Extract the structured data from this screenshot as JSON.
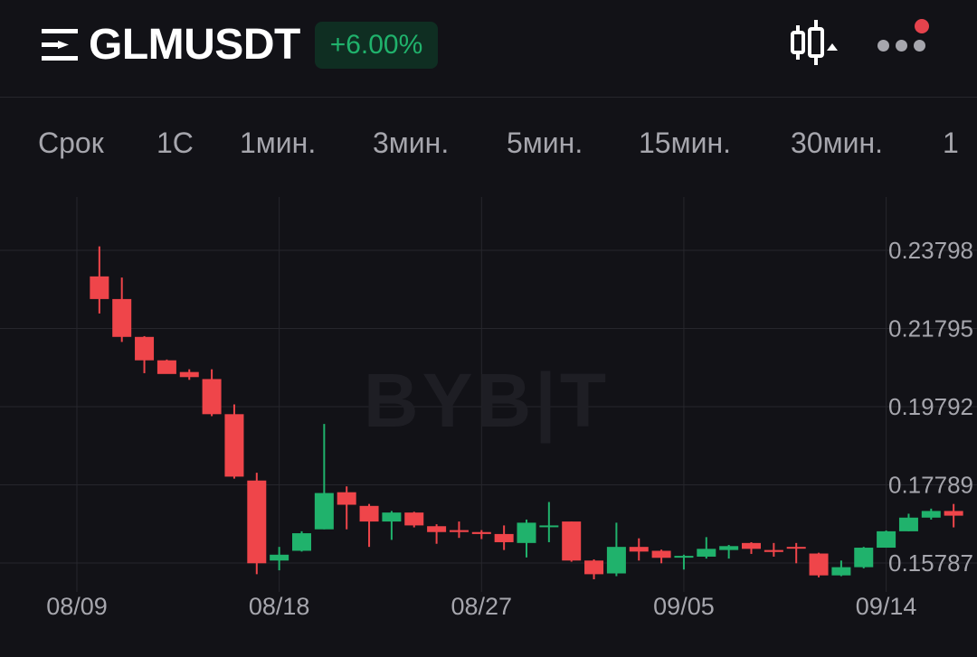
{
  "header": {
    "symbol": "GLMUSDT",
    "change": "+6.00%",
    "icons": {
      "menu": "menu-lines-icon",
      "chart_type": "candlestick-chart-icon",
      "more": "more-dots-icon",
      "notification": "notification-dot"
    }
  },
  "tabs": [
    {
      "label": "Срок",
      "active": false
    },
    {
      "label": "1С",
      "active": false
    },
    {
      "label": "1мин.",
      "active": false
    },
    {
      "label": "3мин.",
      "active": false
    },
    {
      "label": "5мин.",
      "active": false
    },
    {
      "label": "15мин.",
      "active": false
    },
    {
      "label": "30мин.",
      "active": false
    },
    {
      "label": "1",
      "active": false
    }
  ],
  "colors": {
    "background": "#121217",
    "up": "#20b26c",
    "down": "#ef454a",
    "badge_bg": "#0f2e22",
    "text_muted": "#a6a6ad",
    "grid": "#26262c"
  },
  "chart_data": {
    "type": "candlestick",
    "watermark": "BYB|T",
    "price_ticks": [
      "0.23798",
      "0.21795",
      "0.19792",
      "0.17789",
      "0.15787"
    ],
    "date_ticks": [
      "08/09",
      "08/18",
      "08/27",
      "09/05",
      "09/14"
    ],
    "candles": [
      {
        "date": "08/10",
        "o": 0.2313,
        "h": 0.239,
        "l": 0.2218,
        "c": 0.2255
      },
      {
        "date": "08/11",
        "o": 0.2255,
        "h": 0.231,
        "l": 0.2145,
        "c": 0.2158
      },
      {
        "date": "08/12",
        "o": 0.2158,
        "h": 0.216,
        "l": 0.2065,
        "c": 0.2098
      },
      {
        "date": "08/13",
        "o": 0.2098,
        "h": 0.21,
        "l": 0.2065,
        "c": 0.2063
      },
      {
        "date": "08/14",
        "o": 0.2068,
        "h": 0.2075,
        "l": 0.2048,
        "c": 0.2055
      },
      {
        "date": "08/15",
        "o": 0.205,
        "h": 0.2075,
        "l": 0.1955,
        "c": 0.196
      },
      {
        "date": "08/16",
        "o": 0.196,
        "h": 0.1985,
        "l": 0.1795,
        "c": 0.18
      },
      {
        "date": "08/17",
        "o": 0.179,
        "h": 0.181,
        "l": 0.155,
        "c": 0.1578
      },
      {
        "date": "08/18",
        "o": 0.1585,
        "h": 0.162,
        "l": 0.156,
        "c": 0.16
      },
      {
        "date": "08/19",
        "o": 0.161,
        "h": 0.166,
        "l": 0.1608,
        "c": 0.1655
      },
      {
        "date": "08/20",
        "o": 0.1665,
        "h": 0.1935,
        "l": 0.1665,
        "c": 0.1758
      },
      {
        "date": "08/21",
        "o": 0.176,
        "h": 0.1775,
        "l": 0.1665,
        "c": 0.1728
      },
      {
        "date": "08/22",
        "o": 0.1725,
        "h": 0.173,
        "l": 0.162,
        "c": 0.1685
      },
      {
        "date": "08/23",
        "o": 0.1685,
        "h": 0.1712,
        "l": 0.1638,
        "c": 0.1708
      },
      {
        "date": "08/24",
        "o": 0.1708,
        "h": 0.171,
        "l": 0.167,
        "c": 0.1675
      },
      {
        "date": "08/25",
        "o": 0.1673,
        "h": 0.1678,
        "l": 0.1628,
        "c": 0.1658
      },
      {
        "date": "08/26",
        "o": 0.1663,
        "h": 0.1685,
        "l": 0.1643,
        "c": 0.1658
      },
      {
        "date": "08/27",
        "o": 0.1658,
        "h": 0.1663,
        "l": 0.164,
        "c": 0.1653
      },
      {
        "date": "08/28",
        "o": 0.1653,
        "h": 0.1675,
        "l": 0.1612,
        "c": 0.1632
      },
      {
        "date": "08/29",
        "o": 0.163,
        "h": 0.169,
        "l": 0.1593,
        "c": 0.1682
      },
      {
        "date": "08/30",
        "o": 0.1672,
        "h": 0.1735,
        "l": 0.1632,
        "c": 0.1675
      },
      {
        "date": "08/31",
        "o": 0.1685,
        "h": 0.1685,
        "l": 0.1582,
        "c": 0.1585
      },
      {
        "date": "09/01",
        "o": 0.1585,
        "h": 0.1588,
        "l": 0.1537,
        "c": 0.155
      },
      {
        "date": "09/02",
        "o": 0.1552,
        "h": 0.1682,
        "l": 0.1545,
        "c": 0.162
      },
      {
        "date": "09/03",
        "o": 0.162,
        "h": 0.1642,
        "l": 0.1585,
        "c": 0.1608
      },
      {
        "date": "09/04",
        "o": 0.161,
        "h": 0.1613,
        "l": 0.1578,
        "c": 0.1592
      },
      {
        "date": "09/05",
        "o": 0.1595,
        "h": 0.16,
        "l": 0.1562,
        "c": 0.1597
      },
      {
        "date": "09/06",
        "o": 0.1595,
        "h": 0.1645,
        "l": 0.159,
        "c": 0.1615
      },
      {
        "date": "09/07",
        "o": 0.1612,
        "h": 0.1625,
        "l": 0.159,
        "c": 0.1622
      },
      {
        "date": "09/08",
        "o": 0.163,
        "h": 0.1632,
        "l": 0.1602,
        "c": 0.1615
      },
      {
        "date": "09/09",
        "o": 0.1612,
        "h": 0.163,
        "l": 0.1595,
        "c": 0.1607
      },
      {
        "date": "09/10",
        "o": 0.162,
        "h": 0.163,
        "l": 0.1578,
        "c": 0.1617
      },
      {
        "date": "09/11",
        "o": 0.1603,
        "h": 0.1605,
        "l": 0.1542,
        "c": 0.1547
      },
      {
        "date": "09/12",
        "o": 0.1547,
        "h": 0.1585,
        "l": 0.1545,
        "c": 0.1568
      },
      {
        "date": "09/13",
        "o": 0.1568,
        "h": 0.162,
        "l": 0.1565,
        "c": 0.1618
      },
      {
        "date": "09/14",
        "o": 0.1618,
        "h": 0.1662,
        "l": 0.1618,
        "c": 0.166
      },
      {
        "date": "09/15",
        "o": 0.166,
        "h": 0.1705,
        "l": 0.166,
        "c": 0.1695
      },
      {
        "date": "09/16",
        "o": 0.1695,
        "h": 0.1718,
        "l": 0.169,
        "c": 0.1712
      },
      {
        "date": "09/17",
        "o": 0.1712,
        "h": 0.173,
        "l": 0.167,
        "c": 0.17
      }
    ]
  }
}
